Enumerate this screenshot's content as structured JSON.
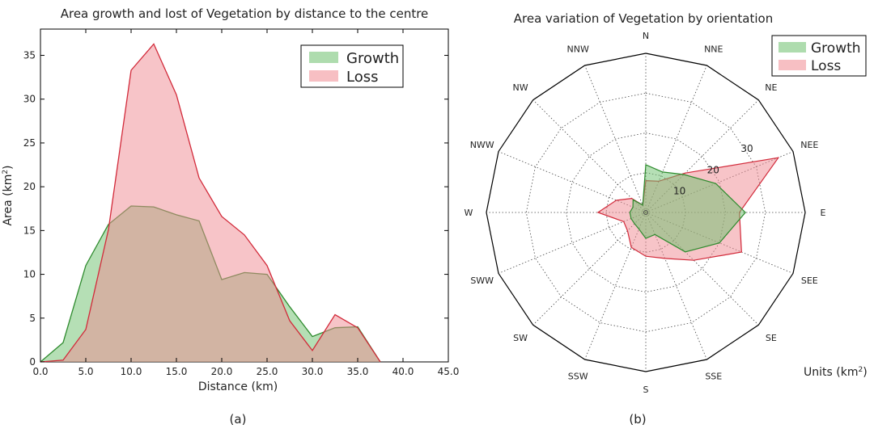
{
  "chart_data": [
    {
      "type": "area",
      "title": "Area growth and lost of Vegetation by distance to the centre",
      "xlabel": "Distance (km)",
      "ylabel": "Area (km²)",
      "ylabel_main": "Area (km",
      "ylabel_sup": "2",
      "ylabel_close": ")",
      "xlim": [
        0,
        45
      ],
      "ylim": [
        0,
        38
      ],
      "xticks": [
        0,
        5,
        10,
        15,
        20,
        25,
        30,
        35,
        40,
        45
      ],
      "xtick_labels": [
        "0.0",
        "5.0",
        "10.0",
        "15.0",
        "20.0",
        "25.0",
        "30.0",
        "35.0",
        "40.0",
        "45.0"
      ],
      "yticks": [
        0,
        5,
        10,
        15,
        20,
        25,
        30,
        35
      ],
      "ytick_labels": [
        "0",
        "5",
        "10",
        "15",
        "20",
        "25",
        "30",
        "35"
      ],
      "legend_position": "top-right",
      "panel_label": "(a)",
      "series": [
        {
          "name": "Growth",
          "line_color": "#2e8b2e",
          "fill_color": "#6cc06c",
          "x": [
            0,
            2.5,
            5,
            7.5,
            10,
            12.5,
            15,
            17.5,
            20,
            22.5,
            25,
            27.5,
            30,
            32.5,
            35,
            37.5
          ],
          "values": [
            0,
            2.2,
            11,
            15.7,
            17.8,
            17.7,
            16.8,
            16.1,
            9.4,
            10.2,
            10.0,
            6.3,
            2.9,
            3.9,
            4.0,
            0
          ]
        },
        {
          "name": "Loss",
          "line_color": "#d22a3a",
          "fill_color": "#f08a92",
          "x": [
            0,
            2.5,
            5,
            7.5,
            10,
            12.5,
            15,
            17.5,
            20,
            22.5,
            25,
            27.5,
            30,
            32.5,
            35,
            37.5
          ],
          "values": [
            0,
            0.2,
            3.7,
            15.1,
            33.3,
            36.3,
            30.5,
            21.0,
            16.6,
            14.5,
            11.0,
            4.7,
            1.3,
            5.4,
            3.9,
            0
          ]
        }
      ]
    },
    {
      "type": "radar",
      "title": "Area variation of Vegetation by orientation",
      "categories": [
        "N",
        "NNE",
        "NE",
        "NEE",
        "E",
        "SEE",
        "SE",
        "SSE",
        "S",
        "SSW",
        "SW",
        "SWW",
        "W",
        "NWW",
        "NW",
        "NNW"
      ],
      "rmax": 40,
      "rings": [
        10,
        20,
        30
      ],
      "ring_labels": [
        "10",
        "20",
        "30"
      ],
      "units_label_main": "Units (km",
      "units_label_sup": "2",
      "units_label_close": ")",
      "legend_position": "top-right",
      "panel_label": "(b)",
      "series": [
        {
          "name": "Growth",
          "line_color": "#2e8b2e",
          "fill_color": "#6cc06c",
          "values": [
            12,
            11,
            13.5,
            19,
            25,
            20,
            14,
            6,
            6.5,
            4.5,
            4,
            4,
            4,
            3.5,
            4.5,
            2
          ]
        },
        {
          "name": "Loss",
          "line_color": "#d22a3a",
          "fill_color": "#f08a92",
          "values": [
            8,
            8.5,
            14,
            36,
            23.5,
            26,
            17,
            12.5,
            11,
            9.5,
            6.5,
            6,
            12,
            8,
            5,
            2
          ]
        }
      ]
    }
  ]
}
